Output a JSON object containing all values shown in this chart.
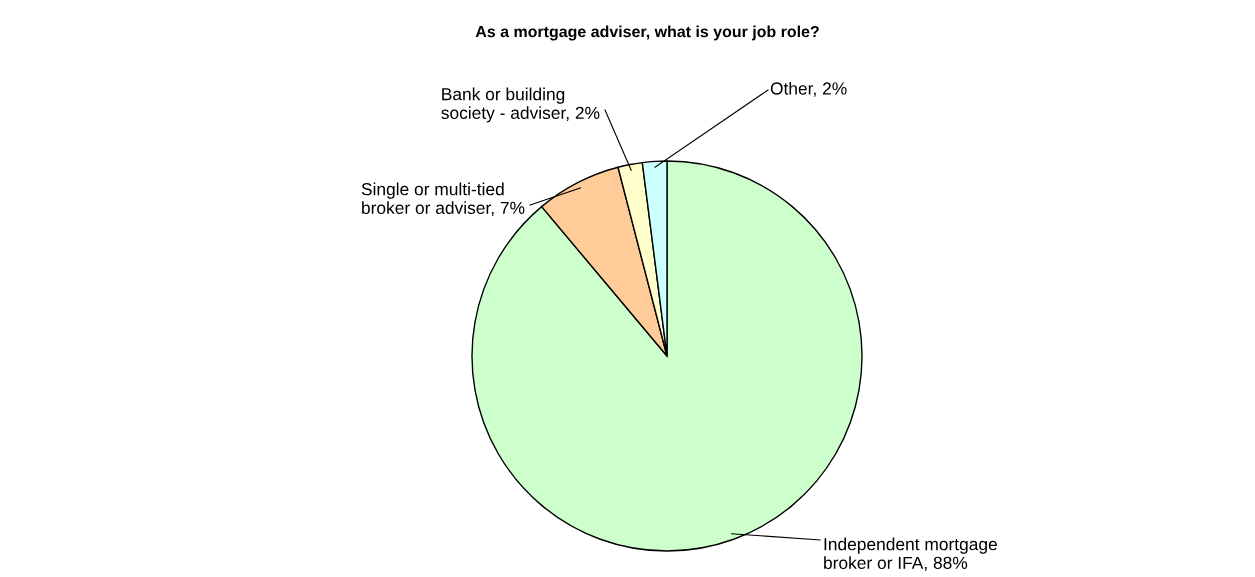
{
  "chart_data": {
    "type": "pie",
    "title": "As a mortgage adviser, what is your job role?",
    "categories": [
      "Independent mortgage\nbroker or IFA",
      "Single or multi-tied\nbroker or adviser",
      "Bank or building\nsociety - adviser",
      "Other"
    ],
    "values": [
      88,
      7,
      2,
      2
    ],
    "value_labels": [
      "88%",
      "7%",
      "2%",
      "2%"
    ],
    "colors": [
      "#ccffcc",
      "#ffcc99",
      "#ffffcc",
      "#ccffff"
    ],
    "legend": false
  }
}
